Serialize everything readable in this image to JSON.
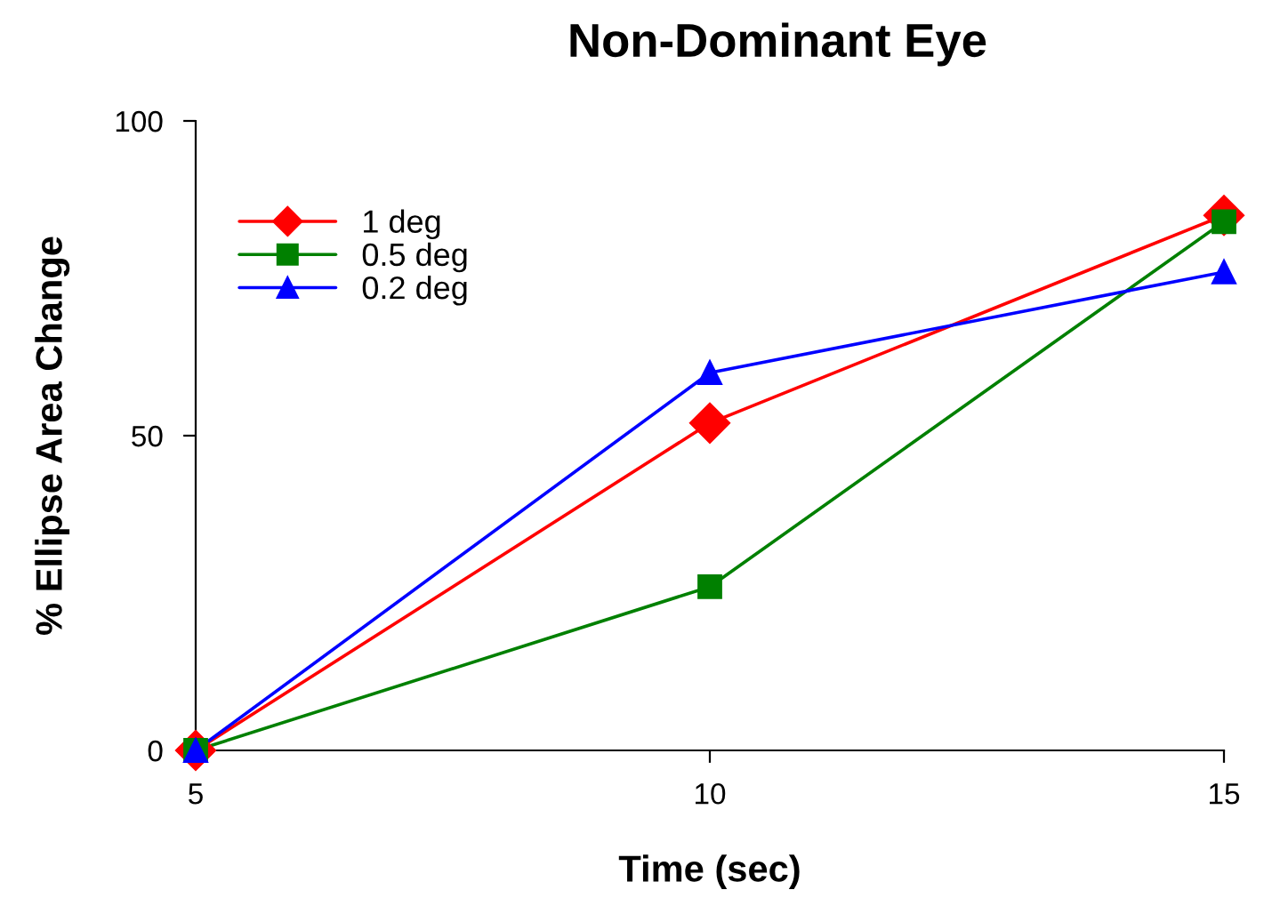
{
  "chart_data": {
    "type": "line",
    "title": "Non-Dominant Eye",
    "xlabel": "Time (sec)",
    "ylabel": "% Ellipse Area Change",
    "x": [
      5,
      10,
      15
    ],
    "series": [
      {
        "name": "1 deg",
        "color": "#ff0000",
        "marker": "diamond",
        "values": [
          0,
          52,
          85
        ]
      },
      {
        "name": "0.5 deg",
        "color": "#008000",
        "marker": "square",
        "values": [
          0,
          26,
          84
        ]
      },
      {
        "name": "0.2 deg",
        "color": "#0000ff",
        "marker": "triangle",
        "values": [
          0,
          60,
          76
        ]
      }
    ],
    "xlim": [
      5,
      15
    ],
    "xticks": [
      5,
      10,
      15
    ],
    "ylim": [
      0,
      100
    ],
    "yticks": [
      0,
      50,
      100
    ],
    "grid": false,
    "legend": "top left",
    "line_style": "solid"
  }
}
